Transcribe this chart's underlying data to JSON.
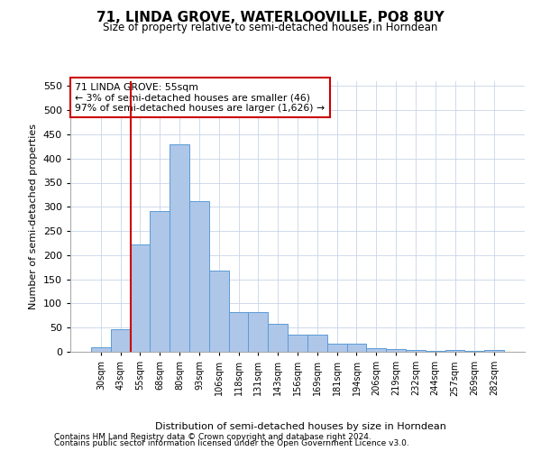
{
  "title": "71, LINDA GROVE, WATERLOOVILLE, PO8 8UY",
  "subtitle": "Size of property relative to semi-detached houses in Horndean",
  "xlabel": "Distribution of semi-detached houses by size in Horndean",
  "ylabel": "Number of semi-detached properties",
  "footer1": "Contains HM Land Registry data © Crown copyright and database right 2024.",
  "footer2": "Contains public sector information licensed under the Open Government Licence v3.0.",
  "annotation_title": "71 LINDA GROVE: 55sqm",
  "annotation_line1": "← 3% of semi-detached houses are smaller (46)",
  "annotation_line2": "97% of semi-detached houses are larger (1,626) →",
  "property_size": 55,
  "bar_labels": [
    "30sqm",
    "43sqm",
    "55sqm",
    "68sqm",
    "80sqm",
    "93sqm",
    "106sqm",
    "118sqm",
    "131sqm",
    "143sqm",
    "156sqm",
    "169sqm",
    "181sqm",
    "194sqm",
    "206sqm",
    "219sqm",
    "232sqm",
    "244sqm",
    "257sqm",
    "269sqm",
    "282sqm"
  ],
  "bar_values": [
    10,
    46,
    222,
    291,
    430,
    311,
    168,
    83,
    83,
    57,
    35,
    35,
    16,
    16,
    7,
    5,
    4,
    2,
    4,
    2,
    4
  ],
  "bar_color": "#aec6e8",
  "bar_edge_color": "#5b9bd5",
  "vline_color": "#cc0000",
  "vline_x_idx": 2,
  "ylim": [
    0,
    560
  ],
  "yticks": [
    0,
    50,
    100,
    150,
    200,
    250,
    300,
    350,
    400,
    450,
    500,
    550
  ],
  "annotation_box_color": "#cc0000",
  "background_color": "#ffffff",
  "grid_color": "#c8d4e8"
}
